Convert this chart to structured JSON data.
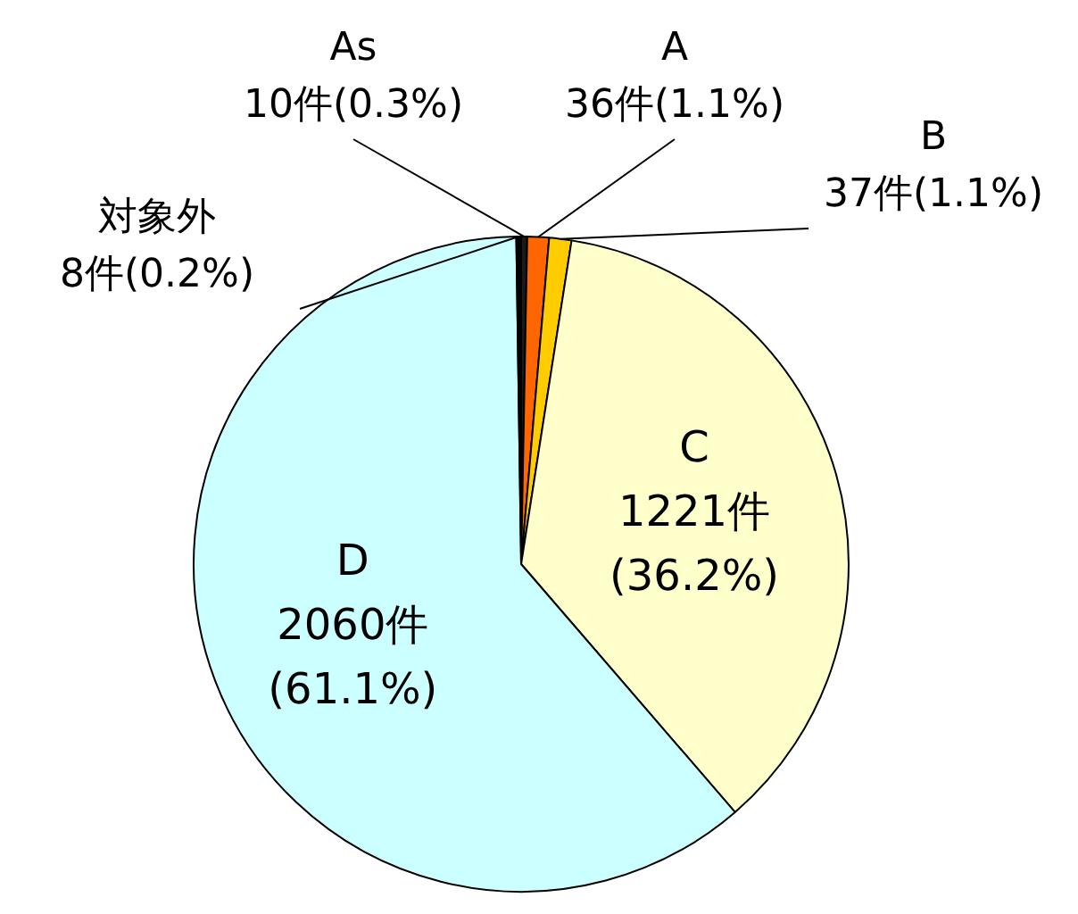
{
  "chart_data": {
    "type": "pie",
    "categories": [
      "As",
      "A",
      "B",
      "C",
      "D",
      "対象外"
    ],
    "values": [
      10,
      36,
      37,
      1221,
      2060,
      8
    ],
    "colors": [
      "#1a1a1a",
      "#ff6600",
      "#ffcc00",
      "#ffffcc",
      "#ccffff",
      "#000000"
    ],
    "value_labels": [
      "10件(0.3%)",
      "36件(1.1%)",
      "37件(1.1%)",
      "1221件(36.2%)",
      "2060件(61.1%)",
      "8件(0.2%)"
    ],
    "legend": false
  }
}
